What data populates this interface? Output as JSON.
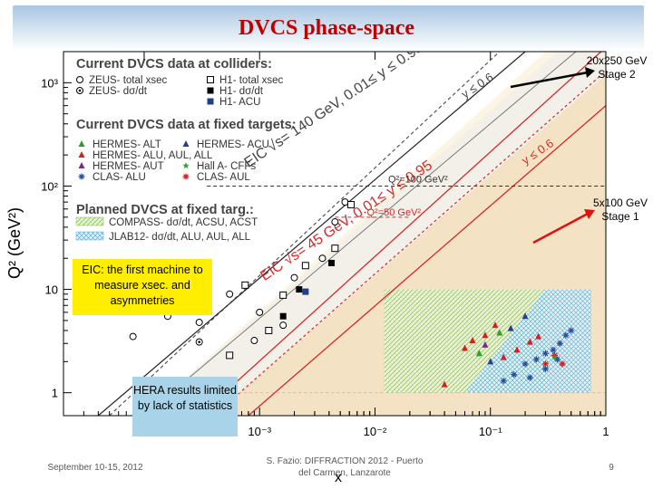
{
  "slide": {
    "title": "DVCS phase-space",
    "callout_stage2": [
      "20x250 GeV",
      "Stage 2"
    ],
    "callout_stage1": [
      "5x100 GeV",
      "Stage 1"
    ],
    "eic_note": "EIC: the first machine to measure xsec. and asymmetries",
    "hera_note": "HERA results limited by lack of statistics",
    "footer_date": "September 10-15, 2012",
    "footer_talk": "S. Fazio: DIFFRACTION 2012 - Puerto del Carmen, Lanzarote",
    "page_number": "9"
  },
  "chart_data": {
    "type": "scatter",
    "xlabel": "x",
    "ylabel": "Q² (GeV²)",
    "xscale": "log",
    "yscale": "log",
    "xlim": [
      2e-05,
      1
    ],
    "ylim": [
      0.6,
      2000
    ],
    "x_ticks": [
      {
        "v": 0.0001,
        "label": "10⁻⁴"
      },
      {
        "v": 0.001,
        "label": "10⁻³"
      },
      {
        "v": 0.01,
        "label": "10⁻²"
      },
      {
        "v": 0.1,
        "label": "10⁻¹"
      },
      {
        "v": 1,
        "label": "1"
      }
    ],
    "y_ticks": [
      {
        "v": 1,
        "label": "1"
      },
      {
        "v": 10,
        "label": "10"
      },
      {
        "v": 100,
        "label": "10²"
      },
      {
        "v": 1000,
        "label": "10³"
      }
    ],
    "legend": {
      "colliders_header": "Current DVCS data at colliders:",
      "colliders": [
        {
          "label": "ZEUS- total xsec",
          "marker": "open-circle",
          "color": "#000000"
        },
        {
          "label": "ZEUS- dσ/dt",
          "marker": "circle-dot",
          "color": "#000000"
        },
        {
          "label": "H1- total xsec",
          "marker": "open-square",
          "color": "#000000"
        },
        {
          "label": "H1- dσ/dt",
          "marker": "filled-square",
          "color": "#000000"
        },
        {
          "label": "H1- ACU",
          "marker": "filled-square",
          "color": "#1f3f8f"
        }
      ],
      "fixed_header": "Current DVCS data at fixed targets:",
      "fixed": [
        {
          "label": "HERMES- ALT",
          "marker": "triangle",
          "color": "#2e9e2e"
        },
        {
          "label": "HERMES- ACU",
          "marker": "triangle",
          "color": "#2a3d8f"
        },
        {
          "label": "HERMES- ALU, AUL, ALL",
          "marker": "triangle",
          "color": "#d32020"
        },
        {
          "label": "HERMES- AUT",
          "marker": "triangle",
          "color": "#7a2a8a"
        },
        {
          "label": "Hall A- CFFs",
          "marker": "star",
          "color": "#2e9e2e"
        },
        {
          "label": "CLAS- ALU",
          "marker": "asterisk",
          "color": "#2a4fa0"
        },
        {
          "label": "CLAS- AUL",
          "marker": "asterisk",
          "color": "#d32020"
        }
      ],
      "planned_header": "Planned DVCS at fixed targ.:",
      "planned": [
        {
          "label": "COMPASS- dσ/dt, ACSU, ACST",
          "pattern": "green-hatch"
        },
        {
          "label": "JLAB12- dσ/dt, ALU, AUL, ALL",
          "pattern": "blue-crosshatch"
        }
      ]
    },
    "annotations": {
      "eic140": "EIC √s= 140 GeV, 0.01≤ y ≤ 0.95",
      "eic45": "EIC √s= 45 GeV, 0.01≤ y ≤ 0.95",
      "y06_a": "y ≤ 0.6",
      "y06_b": "y ≤ 0.6",
      "q2_100": "Q²=100 GeV²",
      "q2_50": "Q²=50 GeV²"
    },
    "series": [
      {
        "name": "ZEUS- total xsec",
        "marker": "open-circle",
        "color": "#000000",
        "points": [
          [
            8e-05,
            3.5
          ],
          [
            0.00016,
            5.5
          ],
          [
            0.0003,
            4.8
          ],
          [
            0.00055,
            9
          ],
          [
            0.001,
            6
          ],
          [
            0.0016,
            4.5
          ],
          [
            0.002,
            13
          ],
          [
            0.0035,
            20
          ],
          [
            0.0045,
            45
          ],
          [
            0.0055,
            70
          ],
          [
            0.0009,
            3.2
          ]
        ]
      },
      {
        "name": "ZEUS- dσ/dt",
        "marker": "circle-dot",
        "color": "#000000",
        "points": [
          [
            0.0003,
            3.1
          ]
        ]
      },
      {
        "name": "H1- total xsec",
        "marker": "open-square",
        "color": "#000000",
        "points": [
          [
            0.00055,
            2.3
          ],
          [
            0.00075,
            11
          ],
          [
            0.0012,
            4
          ],
          [
            0.0016,
            8.8
          ],
          [
            0.0025,
            17
          ],
          [
            0.0062,
            66
          ],
          [
            0.0045,
            25
          ]
        ]
      },
      {
        "name": "H1- dσ/dt",
        "marker": "filled-square",
        "color": "#000000",
        "points": [
          [
            0.0016,
            5.5
          ],
          [
            0.0022,
            10
          ],
          [
            0.0042,
            18
          ]
        ]
      },
      {
        "name": "H1- ACU",
        "marker": "filled-square",
        "color": "#1f3f8f",
        "points": [
          [
            0.0025,
            9.5
          ]
        ]
      },
      {
        "name": "HERMES- ALU, AUL, ALL",
        "marker": "triangle",
        "color": "#d32020",
        "points": [
          [
            0.06,
            2.7
          ],
          [
            0.07,
            3.2
          ],
          [
            0.09,
            3.6
          ],
          [
            0.11,
            4.5
          ],
          [
            0.13,
            2.2
          ],
          [
            0.04,
            1.2
          ],
          [
            0.17,
            2.6
          ],
          [
            0.22,
            3.1
          ],
          [
            0.26,
            3.5
          ]
        ]
      },
      {
        "name": "HERMES- ALT",
        "marker": "triangle",
        "color": "#2e9e2e",
        "points": [
          [
            0.08,
            2.4
          ],
          [
            0.12,
            3.8
          ]
        ]
      },
      {
        "name": "HERMES- ACU",
        "marker": "triangle",
        "color": "#2a3d8f",
        "points": [
          [
            0.1,
            2.0
          ],
          [
            0.15,
            4.2
          ],
          [
            0.2,
            5.5
          ]
        ]
      },
      {
        "name": "HERMES- AUT",
        "marker": "triangle",
        "color": "#7a2a8a",
        "points": [
          [
            0.09,
            2.9
          ]
        ]
      },
      {
        "name": "CLAS- ALU",
        "marker": "asterisk",
        "color": "#2a4fa0",
        "points": [
          [
            0.13,
            1.3
          ],
          [
            0.16,
            1.5
          ],
          [
            0.2,
            1.9
          ],
          [
            0.25,
            2.1
          ],
          [
            0.3,
            2.4
          ],
          [
            0.35,
            2.6
          ],
          [
            0.4,
            3.0
          ],
          [
            0.45,
            3.6
          ],
          [
            0.5,
            4.0
          ],
          [
            0.22,
            1.4
          ],
          [
            0.3,
            1.7
          ],
          [
            0.38,
            2.1
          ]
        ]
      },
      {
        "name": "CLAS- AUL",
        "marker": "asterisk",
        "color": "#d32020",
        "points": [
          [
            0.3,
            1.9
          ],
          [
            0.36,
            2.3
          ],
          [
            0.42,
            1.9
          ]
        ]
      },
      {
        "name": "Hall A- CFFs",
        "marker": "star",
        "color": "#2e9e2e",
        "points": [
          [
            0.36,
            2.2
          ]
        ]
      }
    ]
  }
}
